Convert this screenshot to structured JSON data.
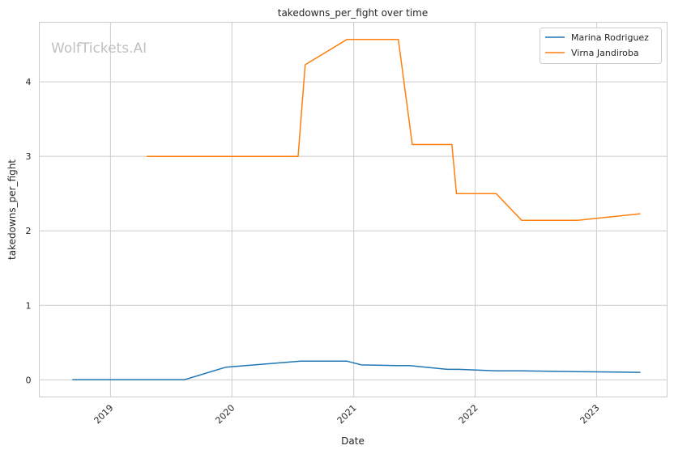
{
  "chart_data": {
    "type": "line",
    "title": "takedowns_per_fight over time",
    "xlabel": "Date",
    "ylabel": "takedowns_per_fight",
    "watermark": "WolfTickets.AI",
    "grid": true,
    "legend_position": "top-right",
    "x_ticks": [
      "2019",
      "2020",
      "2021",
      "2022",
      "2023"
    ],
    "y_ticks": [
      0,
      1,
      2,
      3,
      4
    ],
    "xlim": [
      "2018-06-01",
      "2023-08-01"
    ],
    "ylim": [
      -0.23,
      4.8
    ],
    "series": [
      {
        "name": "Marina Rodriguez",
        "color": "#1f77b4",
        "points": [
          [
            "2018-09-08",
            0
          ],
          [
            "2019-08-10",
            0
          ],
          [
            "2019-12-14",
            0.17
          ],
          [
            "2020-07-25",
            0.25
          ],
          [
            "2020-12-12",
            0.25
          ],
          [
            "2021-01-24",
            0.2
          ],
          [
            "2021-05-08",
            0.19
          ],
          [
            "2021-06-19",
            0.19
          ],
          [
            "2021-10-09",
            0.14
          ],
          [
            "2021-11-13",
            0.14
          ],
          [
            "2022-03-05",
            0.12
          ],
          [
            "2022-05-21",
            0.12
          ],
          [
            "2022-11-05",
            0.11
          ],
          [
            "2023-05-13",
            0.1
          ]
        ]
      },
      {
        "name": "Virna Jandiroba",
        "color": "#ff7f0e",
        "points": [
          [
            "2019-04-20",
            3.0
          ],
          [
            "2020-07-18",
            3.0
          ],
          [
            "2020-08-08",
            4.23
          ],
          [
            "2020-12-12",
            4.57
          ],
          [
            "2021-05-15",
            4.57
          ],
          [
            "2021-06-26",
            3.16
          ],
          [
            "2021-10-23",
            3.16
          ],
          [
            "2021-11-06",
            2.5
          ],
          [
            "2022-03-05",
            2.5
          ],
          [
            "2022-05-21",
            2.14
          ],
          [
            "2022-11-05",
            2.14
          ],
          [
            "2023-05-13",
            2.23
          ]
        ]
      }
    ]
  }
}
